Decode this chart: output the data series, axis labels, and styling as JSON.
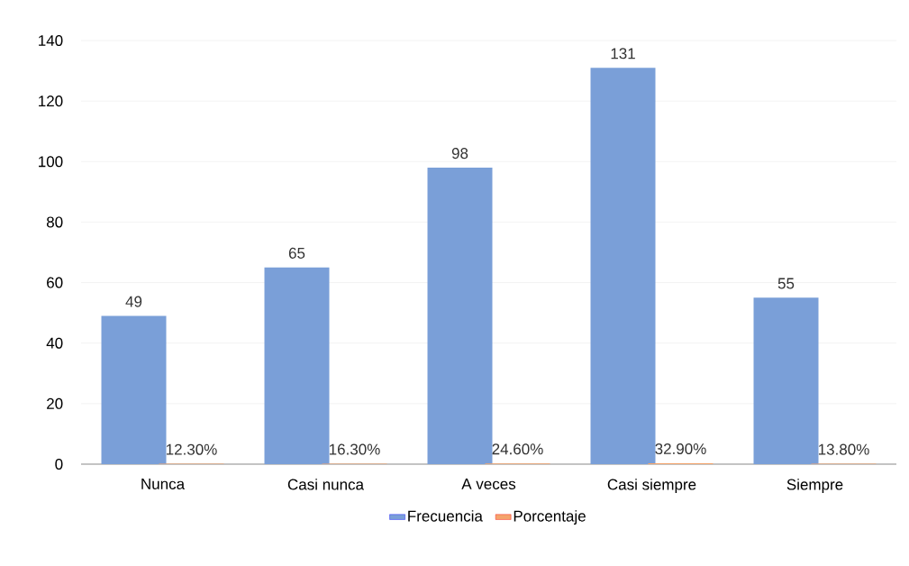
{
  "chart_data": {
    "type": "bar",
    "categories": [
      "Nunca",
      "Casi nunca",
      "A veces",
      "Casi siempre",
      "Siempre"
    ],
    "series": [
      {
        "name": "Frecuencia",
        "color": "#7a9fd8",
        "values": [
          49,
          65,
          98,
          131,
          55
        ]
      },
      {
        "name": "Porcentaje",
        "color": "#f4a46c",
        "values": [
          0.123,
          0.163,
          0.246,
          0.329,
          0.138
        ],
        "value_labels": [
          "12.30%",
          "16.30%",
          "24.60%",
          "32.90%",
          "13.80%"
        ]
      }
    ],
    "data_labels": true,
    "ylim": [
      0,
      140
    ],
    "yticks": [
      0,
      20,
      40,
      60,
      80,
      100,
      120,
      140
    ],
    "grid": "y",
    "legend": "bottom"
  }
}
